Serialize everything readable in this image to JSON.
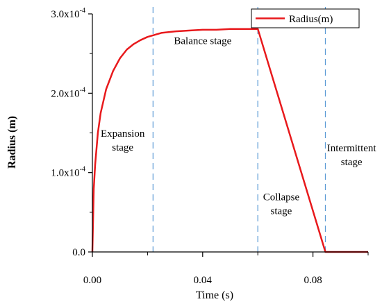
{
  "chart_data": {
    "type": "line",
    "xlabel": "Time (s)",
    "ylabel": "Radius (m)",
    "xlim": [
      0,
      0.1
    ],
    "ylim": [
      0,
      0.0003
    ],
    "x_ticks": [
      {
        "value": 0,
        "label": "0.00"
      },
      {
        "value": 0.04,
        "label": "0.04"
      },
      {
        "value": 0.08,
        "label": "0.08"
      }
    ],
    "x_minor_ticks": [
      0.02,
      0.06,
      0.1
    ],
    "y_ticks": [
      {
        "value": 0,
        "mantissa": "0.0",
        "exp": ""
      },
      {
        "value": 0.0001,
        "mantissa": "1.0x10",
        "exp": "-4"
      },
      {
        "value": 0.0002,
        "mantissa": "2.0x10",
        "exp": "-4"
      },
      {
        "value": 0.0003,
        "mantissa": "3.0x10",
        "exp": "-4"
      }
    ],
    "series": [
      {
        "name": "Radius(m)",
        "color": "#e8191c",
        "x": [
          0,
          0.0005,
          0.001,
          0.002,
          0.003,
          0.005,
          0.0075,
          0.01,
          0.0125,
          0.015,
          0.0175,
          0.02,
          0.025,
          0.03,
          0.035,
          0.04,
          0.045,
          0.05,
          0.055,
          0.06,
          0.0845,
          0.1
        ],
        "y": [
          0,
          8e-05,
          0.00011,
          0.00015,
          0.000175,
          0.000205,
          0.000228,
          0.000244,
          0.000255,
          0.000262,
          0.000267,
          0.000271,
          0.000276,
          0.000278,
          0.000279,
          0.00028,
          0.00028,
          0.000281,
          0.000281,
          0.000281,
          0,
          0
        ]
      }
    ],
    "stage_boundaries": [
      0.022,
      0.06,
      0.0845
    ],
    "boundary_color": "#5b9bd5",
    "annotations": [
      {
        "lines": [
          "Balance stage"
        ],
        "x": 0.04,
        "y": 0.000262,
        "align": "middle"
      },
      {
        "lines": [
          "Expansion",
          "stage"
        ],
        "x": 0.011,
        "y": 0.000145,
        "align": "middle"
      },
      {
        "lines": [
          "Intermittent",
          "stage"
        ],
        "x": 0.094,
        "y": 0.000127,
        "align": "middle"
      },
      {
        "lines": [
          "Collapse",
          "stage"
        ],
        "x": 0.0685,
        "y": 6.5e-05,
        "align": "middle"
      }
    ],
    "legend": {
      "position": "top-right",
      "label": "Radius(m)"
    },
    "grid": false
  }
}
